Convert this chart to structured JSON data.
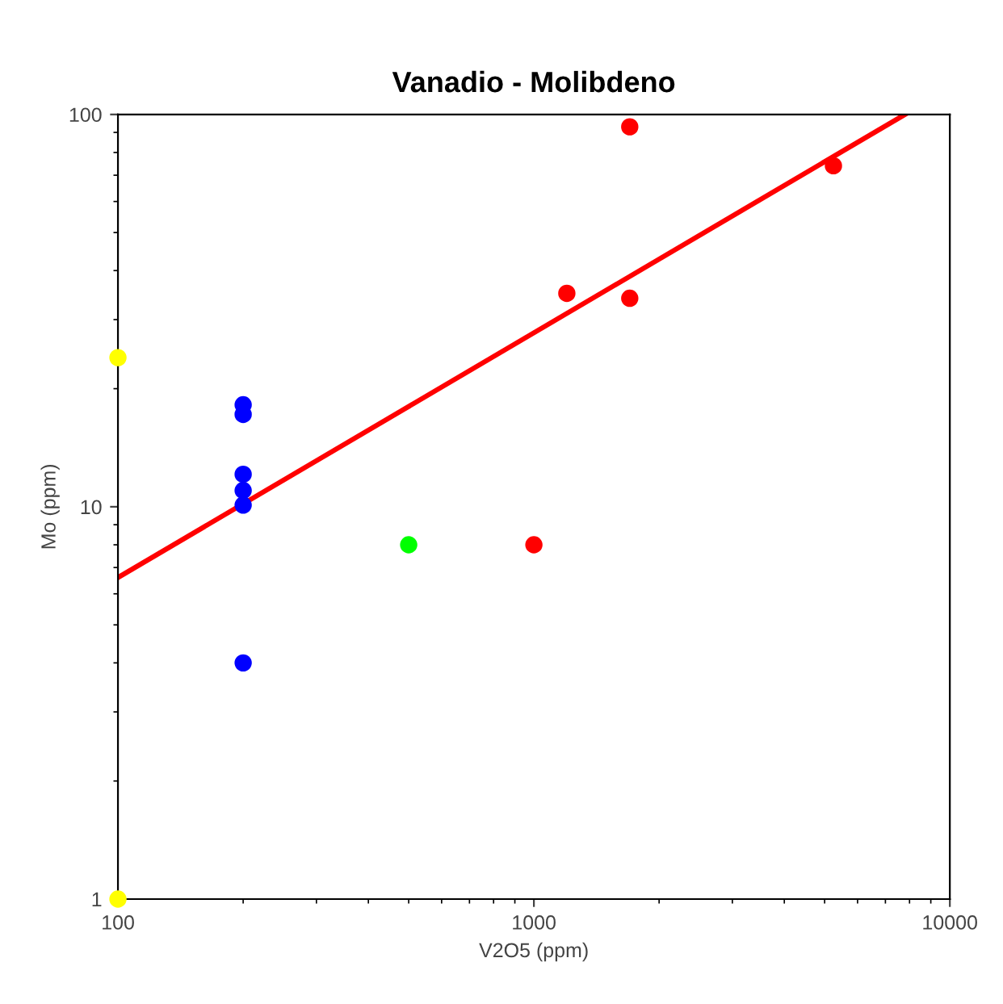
{
  "chart_data": {
    "type": "scatter",
    "title": "Vanadio - Molibdeno",
    "xlabel": "V2O5 (ppm)",
    "ylabel": "Mo (ppm)",
    "log": "xy",
    "grid": false,
    "marker": "circle",
    "xlim": [
      100,
      10000
    ],
    "ylim": [
      1,
      100
    ],
    "xticks": [
      100,
      1000,
      10000
    ],
    "yticks": [
      1,
      10,
      100
    ],
    "series": [
      {
        "color": "#ffff00",
        "x": [
          100,
          100
        ],
        "values": [
          24,
          1
        ]
      },
      {
        "color": "#0000ff",
        "x": [
          200,
          200,
          200,
          200,
          200,
          200
        ],
        "values": [
          18.2,
          17.2,
          12.1,
          11,
          10.1,
          4
        ]
      },
      {
        "color": "#00ff00",
        "x": [
          500
        ],
        "values": [
          8
        ]
      },
      {
        "color": "#ff0000",
        "x": [
          1000,
          1200,
          1700,
          1700,
          5250
        ],
        "values": [
          8,
          35,
          93,
          34,
          74
        ]
      },
      {
        "type": "line",
        "marker": "none",
        "color": "#ff0000",
        "x": [
          100,
          7800
        ],
        "values": [
          6.6,
          100
        ]
      }
    ]
  }
}
